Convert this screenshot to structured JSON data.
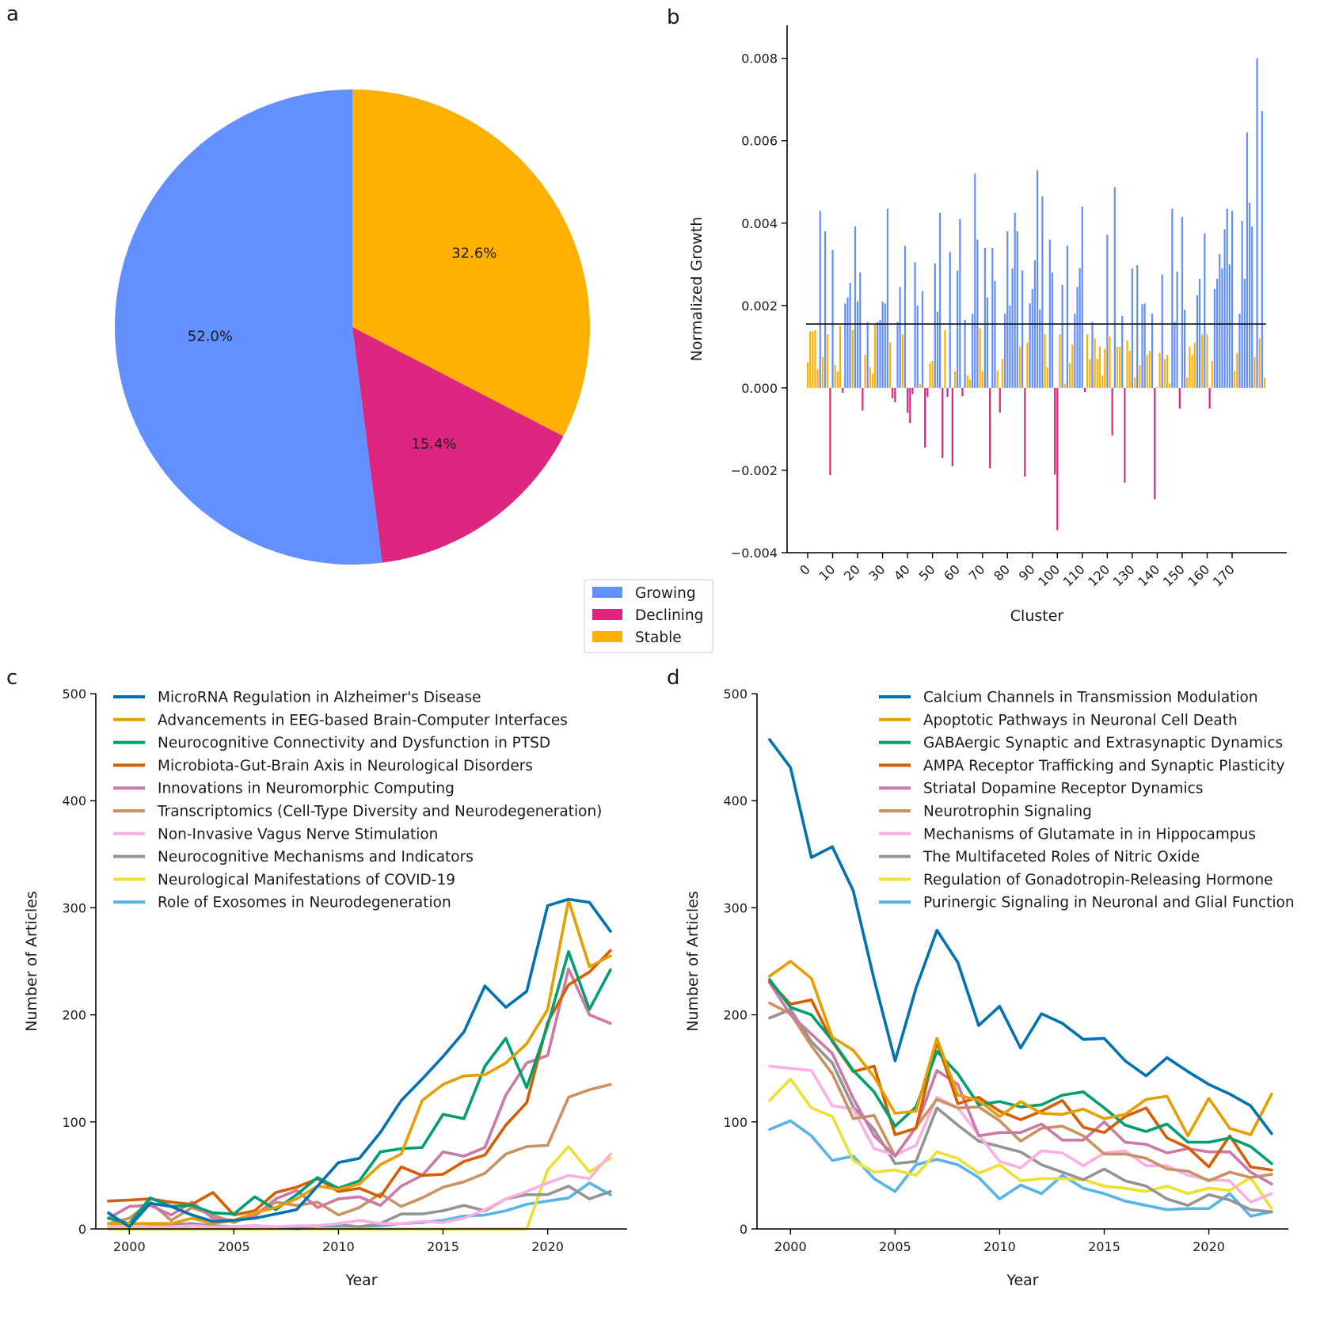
{
  "panels": {
    "a": "a",
    "b": "b",
    "c": "c",
    "d": "d"
  },
  "colors": {
    "growing": "#648FFF",
    "declining": "#DC267F",
    "stable": "#FFB000"
  },
  "chart_data": [
    {
      "id": "a",
      "type": "pie",
      "slices": [
        {
          "name": "Stable",
          "value": 32.6,
          "label": "32.6%",
          "color": "#FFB000"
        },
        {
          "name": "Declining",
          "value": 15.4,
          "label": "15.4%",
          "color": "#DC267F"
        },
        {
          "name": "Growing",
          "value": 52.0,
          "label": "52.0%",
          "color": "#648FFF"
        }
      ],
      "legend": [
        {
          "name": "Growing",
          "color": "#648FFF"
        },
        {
          "name": "Declining",
          "color": "#DC267F"
        },
        {
          "name": "Stable",
          "color": "#FFB000"
        }
      ],
      "legend_placement": "bottom-right"
    },
    {
      "id": "b",
      "type": "bar",
      "xlabel": "Cluster",
      "ylabel": "Normalized Growth",
      "ylim": [
        -0.004,
        0.0088
      ],
      "yticks": [
        -0.004,
        -0.002,
        0.0,
        0.002,
        0.004,
        0.006,
        0.008
      ],
      "ytick_labels": [
        "−0.004",
        "−0.002",
        "0.000",
        "0.002",
        "0.004",
        "0.006",
        "0.008"
      ],
      "xticks": [
        0,
        10,
        20,
        30,
        40,
        50,
        60,
        70,
        80,
        90,
        100,
        110,
        120,
        130,
        140,
        150,
        160,
        170
      ],
      "xtick_labels": [
        "0",
        "10",
        "20",
        "30",
        "40",
        "50",
        "60",
        "70",
        "80",
        "90",
        "100",
        "110",
        "120",
        "130",
        "140",
        "150",
        "160",
        "170"
      ],
      "threshold": 0.00155,
      "values": [
        0.00062,
        0.00137,
        0.00137,
        0.0014,
        0.00045,
        0.0043,
        0.00075,
        0.0038,
        0.0013,
        -0.00212,
        0.00335,
        0.00055,
        0.0004,
        0.0015,
        -0.00012,
        0.00205,
        0.0022,
        0.00255,
        0.0014,
        0.00392,
        0.0021,
        0.0028,
        -0.00055,
        0.0008,
        0.0016,
        0.0005,
        0.00035,
        0.00155,
        0.0016,
        0.00165,
        0.0021,
        0.00205,
        0.00435,
        0.0011,
        -0.00025,
        -0.00035,
        0.0016,
        0.00245,
        0.0013,
        0.00345,
        -0.0006,
        -0.00085,
        -0.00015,
        0.00305,
        0.002,
        0.0001,
        0.00235,
        -0.00145,
        -0.00022,
        0.0006,
        0.00065,
        0.00302,
        0.00185,
        0.00425,
        -0.0017,
        0.0014,
        -0.00022,
        0.0033,
        -0.0019,
        0.0004,
        0.00285,
        0.0041,
        -0.0002,
        0.00165,
        0.0003,
        0.0002,
        0.0018,
        0.0052,
        0.0036,
        0.00145,
        0.0004,
        0.0034,
        0.0022,
        -0.00195,
        0.0034,
        0.0026,
        0.00042,
        -0.0006,
        0.0007,
        0.0018,
        0.0038,
        0.002,
        0.0029,
        0.00425,
        0.0038,
        0.001,
        0.00285,
        -0.00215,
        0.0011,
        0.00205,
        0.0024,
        0.0031,
        0.00528,
        0.0019,
        0.00465,
        0.0013,
        0.0005,
        0.0036,
        0.0028,
        -0.0021,
        -0.00345,
        0.0013,
        0.0025,
        0.0001,
        0.00345,
        0.0006,
        0.00105,
        0.0018,
        0.00245,
        0.0029,
        0.0044,
        -0.0001,
        0.0013,
        0.0007,
        0.0016,
        0.0012,
        0.0007,
        0.001,
        0.0003,
        0.00095,
        0.00372,
        0.00125,
        -0.00115,
        0.00487,
        0.001,
        0.001,
        0.00175,
        -0.0023,
        0.00115,
        0.0009,
        0.0029,
        0.00025,
        0.00298,
        0.00055,
        0.00203,
        0.00205,
        0.0008,
        0.0009,
        0.0018,
        -0.0027,
        2e-05,
        0.00085,
        0.00275,
        0.0007,
        0.0008,
        0.0001,
        0.00435,
        0.0016,
        0.00282,
        -0.0005,
        0.00415,
        0.0019,
        0.00025,
        0.001,
        0.0008,
        0.0011,
        0.00225,
        0.00265,
        0.0013,
        0.00375,
        0.0013,
        -0.0005,
        0.00065,
        0.0024,
        0.00265,
        0.00325,
        0.0029,
        0.00385,
        0.00435,
        0.003,
        0.0043,
        0.0004,
        0.00085,
        0.0018,
        0.00405,
        0.00265,
        0.0062,
        0.0045,
        0.00392,
        0.00075,
        0.008,
        0.0012,
        0.00672,
        0.00025
      ]
    },
    {
      "id": "c",
      "type": "line",
      "xlabel": "Year",
      "ylabel": "Number of Articles",
      "xlim": [
        1998.4,
        2023.8
      ],
      "ylim": [
        0,
        500
      ],
      "xticks": [
        2000,
        2005,
        2010,
        2015,
        2020
      ],
      "xtick_labels": [
        "2000",
        "2005",
        "2010",
        "2015",
        "2020"
      ],
      "yticks": [
        0,
        100,
        200,
        300,
        400,
        500
      ],
      "ytick_labels": [
        "0",
        "100",
        "200",
        "300",
        "400",
        "500"
      ],
      "x": [
        1999,
        2000,
        2001,
        2002,
        2003,
        2004,
        2005,
        2006,
        2007,
        2008,
        2009,
        2010,
        2011,
        2012,
        2013,
        2014,
        2015,
        2016,
        2017,
        2018,
        2019,
        2020,
        2021,
        2022,
        2023
      ],
      "series": [
        {
          "name": "MicroRNA Regulation in Alzheimer's Disease",
          "color": "#0072B2",
          "values": [
            15,
            2,
            24,
            21,
            13,
            7,
            8,
            10,
            14,
            18,
            40,
            62,
            66,
            90,
            120,
            140,
            161,
            184,
            227,
            207,
            222,
            302,
            308,
            305,
            278
          ]
        },
        {
          "name": "Advancements in EEG-based Brain-Computer Interfaces",
          "color": "#E69F00",
          "values": [
            5,
            5,
            5,
            5,
            10,
            5,
            8,
            15,
            20,
            28,
            40,
            37,
            42,
            60,
            70,
            120,
            135,
            143,
            144,
            155,
            173,
            205,
            307,
            245,
            255
          ]
        },
        {
          "name": "Neurocognitive Connectivity and Dysfunction in PTSD",
          "color": "#009E73",
          "values": [
            10,
            5,
            29,
            21,
            22,
            15,
            14,
            30,
            18,
            32,
            48,
            38,
            45,
            72,
            75,
            76,
            107,
            103,
            152,
            178,
            132,
            190,
            259,
            205,
            242
          ]
        },
        {
          "name": "Microbiota-Gut-Brain Axis in Neurological Disorders",
          "color": "#D55E00",
          "values": [
            26,
            27,
            28,
            25,
            23,
            34,
            13,
            17,
            34,
            39,
            47,
            35,
            38,
            30,
            58,
            50,
            51,
            63,
            69,
            97,
            118,
            193,
            228,
            240,
            260
          ]
        },
        {
          "name": "Innovations in Neuromorphic Computing",
          "color": "#CC79A7",
          "values": [
            10,
            21,
            22,
            13,
            25,
            10,
            8,
            12,
            28,
            36,
            20,
            28,
            30,
            22,
            40,
            50,
            72,
            68,
            76,
            125,
            155,
            162,
            243,
            200,
            192
          ]
        },
        {
          "name": "Transcriptomics (Cell-Type Diversity and Neurodegeneration)",
          "color": "#CA9161",
          "values": [
            5,
            10,
            25,
            8,
            20,
            13,
            6,
            14,
            25,
            22,
            25,
            13,
            20,
            33,
            21,
            29,
            39,
            44,
            52,
            70,
            77,
            78,
            123,
            130,
            135
          ]
        },
        {
          "name": "Non-Invasive Vagus Nerve Stimulation",
          "color": "#FBAFE4",
          "values": [
            2,
            3,
            2,
            2,
            3,
            2,
            2,
            3,
            2,
            3,
            3,
            5,
            8,
            5,
            5,
            7,
            6,
            10,
            18,
            28,
            35,
            43,
            50,
            47,
            70
          ]
        },
        {
          "name": "Neurocognitive Mechanisms and Indicators",
          "color": "#949494",
          "values": [
            5,
            3,
            4,
            4,
            5,
            3,
            2,
            3,
            2,
            0,
            3,
            4,
            2,
            5,
            14,
            14,
            17,
            22,
            17,
            28,
            32,
            32,
            40,
            28,
            35
          ]
        },
        {
          "name": "Neurological Manifestations of COVID-19",
          "color": "#ECE133",
          "values": [
            0,
            0,
            0,
            0,
            0,
            0,
            0,
            0,
            0,
            0,
            0,
            0,
            0,
            0,
            0,
            0,
            0,
            0,
            0,
            0,
            0,
            55,
            77,
            53,
            66
          ]
        },
        {
          "name": "Role of Exosomes in Neurodegeneration",
          "color": "#56B4E9",
          "values": [
            0,
            0,
            0,
            0,
            0,
            0,
            0,
            0,
            1,
            1,
            1,
            2,
            2,
            3,
            5,
            6,
            8,
            12,
            13,
            17,
            23,
            26,
            29,
            43,
            32
          ]
        }
      ],
      "legend_placement": "top-left"
    },
    {
      "id": "d",
      "type": "line",
      "xlabel": "Year",
      "ylabel": "Number of Articles",
      "xlim": [
        1998.4,
        2023.8
      ],
      "ylim": [
        0,
        500
      ],
      "xticks": [
        2000,
        2005,
        2010,
        2015,
        2020
      ],
      "xtick_labels": [
        "2000",
        "2005",
        "2010",
        "2015",
        "2020"
      ],
      "yticks": [
        0,
        100,
        200,
        300,
        400,
        500
      ],
      "ytick_labels": [
        "0",
        "100",
        "200",
        "300",
        "400",
        "500"
      ],
      "x": [
        1999,
        2000,
        2001,
        2002,
        2003,
        2004,
        2005,
        2006,
        2007,
        2008,
        2009,
        2010,
        2011,
        2012,
        2013,
        2014,
        2015,
        2016,
        2017,
        2018,
        2019,
        2020,
        2021,
        2022,
        2023
      ],
      "series": [
        {
          "name": "Calcium Channels in Transmission Modulation",
          "color": "#0072B2",
          "values": [
            457,
            431,
            347,
            357,
            316,
            233,
            157,
            225,
            279,
            249,
            190,
            208,
            169,
            201,
            192,
            177,
            178,
            157,
            143,
            160,
            147,
            135,
            126,
            115,
            89
          ]
        },
        {
          "name": "Apoptotic Pathways in Neuronal Cell Death",
          "color": "#E69F00",
          "values": [
            236,
            250,
            234,
            179,
            167,
            142,
            108,
            110,
            178,
            125,
            120,
            105,
            119,
            108,
            107,
            112,
            103,
            107,
            121,
            124,
            87,
            122,
            94,
            88,
            126
          ]
        },
        {
          "name": "GABAergic Synaptic and Extrasynaptic Dynamics",
          "color": "#009E73",
          "values": [
            233,
            207,
            200,
            176,
            148,
            128,
            96,
            114,
            166,
            145,
            116,
            119,
            114,
            116,
            125,
            128,
            113,
            97,
            91,
            98,
            81,
            81,
            85,
            77,
            61
          ]
        },
        {
          "name": "AMPA Receptor Trafficking and Synaptic Plasticity",
          "color": "#D55E00",
          "values": [
            231,
            210,
            214,
            175,
            147,
            152,
            88,
            94,
            175,
            117,
            123,
            110,
            102,
            110,
            120,
            95,
            90,
            105,
            113,
            85,
            76,
            58,
            87,
            58,
            55
          ]
        },
        {
          "name": "Striatal Dopamine Receptor Dynamics",
          "color": "#CC79A7",
          "values": [
            230,
            200,
            182,
            164,
            122,
            87,
            68,
            95,
            148,
            135,
            87,
            90,
            90,
            98,
            83,
            83,
            100,
            81,
            79,
            71,
            75,
            72,
            72,
            53,
            42
          ]
        },
        {
          "name": "Neurotrophin Signaling",
          "color": "#CA9161",
          "values": [
            211,
            201,
            171,
            145,
            103,
            106,
            68,
            95,
            121,
            113,
            114,
            101,
            82,
            94,
            96,
            87,
            70,
            70,
            66,
            56,
            54,
            45,
            53,
            48,
            51
          ]
        },
        {
          "name": "Mechanisms of Glutamate in in Hippocampus",
          "color": "#FBAFE4",
          "values": [
            152,
            150,
            148,
            115,
            112,
            75,
            69,
            78,
            123,
            113,
            88,
            63,
            57,
            73,
            71,
            59,
            71,
            73,
            59,
            59,
            50,
            46,
            45,
            25,
            33
          ]
        },
        {
          "name": "The Multifaceted Roles of Nitric Oxide",
          "color": "#949494",
          "values": [
            197,
            205,
            175,
            155,
            114,
            93,
            61,
            63,
            113,
            97,
            82,
            77,
            72,
            60,
            53,
            46,
            56,
            45,
            40,
            28,
            22,
            32,
            27,
            18,
            16
          ]
        },
        {
          "name": "Regulation of Gonadotropin-Releasing Hormone",
          "color": "#ECE133",
          "values": [
            120,
            140,
            113,
            105,
            64,
            53,
            55,
            50,
            72,
            66,
            52,
            60,
            45,
            47,
            47,
            46,
            40,
            38,
            35,
            40,
            33,
            38,
            36,
            48,
            19
          ]
        },
        {
          "name": "Purinergic Signaling in Neuronal and Glial Function",
          "color": "#56B4E9",
          "values": [
            93,
            101,
            87,
            64,
            68,
            47,
            35,
            60,
            65,
            60,
            48,
            28,
            41,
            33,
            50,
            38,
            33,
            26,
            22,
            18,
            19,
            19,
            33,
            12,
            16
          ]
        }
      ],
      "legend_placement": "top-right"
    }
  ]
}
